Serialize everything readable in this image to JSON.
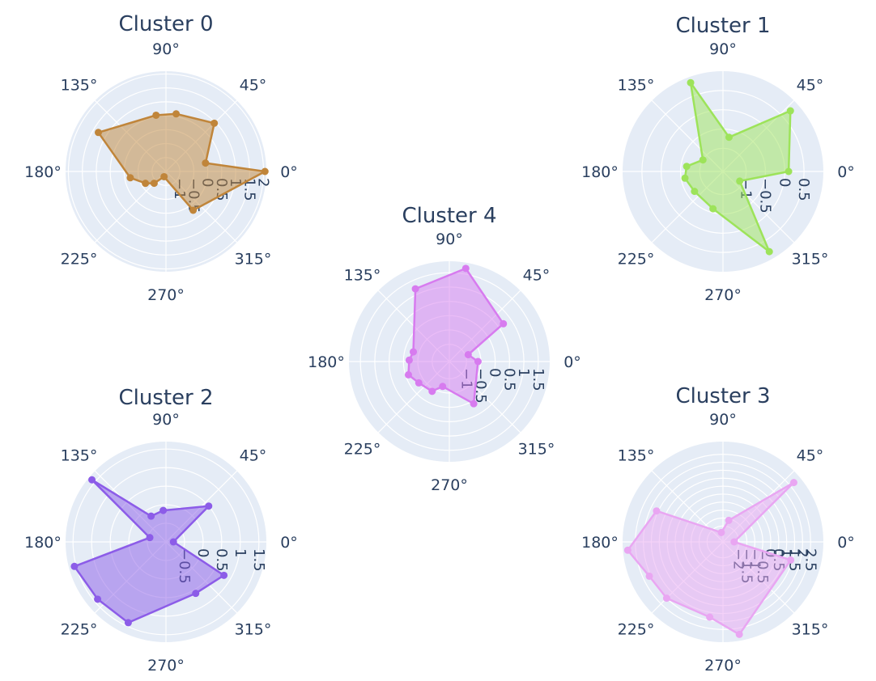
{
  "chart_data": [
    {
      "type": "radar",
      "title": "Cluster 0",
      "color": "#c0853a",
      "radial_range": [
        -1.5,
        2.1
      ],
      "radial_ticks": [
        "−1",
        "−0.5",
        "0",
        "0.5",
        "1",
        "1.5",
        "2"
      ],
      "angular_ticks": [
        "0°",
        "45°",
        "90°",
        "135°",
        "180°",
        "225°",
        "270°",
        "315°"
      ],
      "points": [
        {
          "theta": 0,
          "r": 2.05
        },
        {
          "theta": 12,
          "r": -0.05
        },
        {
          "theta": 45,
          "r": 0.95
        },
        {
          "theta": 80,
          "r": 0.6
        },
        {
          "theta": 100,
          "r": 0.55
        },
        {
          "theta": 150,
          "r": 1.3
        },
        {
          "theta": 190,
          "r": -0.2
        },
        {
          "theta": 210,
          "r": -0.65
        },
        {
          "theta": 225,
          "r": -0.9
        },
        {
          "theta": 250,
          "r": -1.3
        },
        {
          "theta": 305,
          "r": 0.2
        }
      ]
    },
    {
      "type": "radar",
      "title": "Cluster 1",
      "color": "#9de35a",
      "radial_range": [
        -1.6,
        1.0
      ],
      "radial_ticks": [
        "−1",
        "−0.5",
        "0",
        "0.5"
      ],
      "angular_ticks": [
        "0°",
        "45°",
        "90°",
        "135°",
        "180°",
        "225°",
        "270°",
        "315°"
      ],
      "points": [
        {
          "theta": 0,
          "r": 0.1
        },
        {
          "theta": 42,
          "r": 0.75
        },
        {
          "theta": 80,
          "r": -0.7
        },
        {
          "theta": 110,
          "r": 0.85
        },
        {
          "theta": 150,
          "r": -1.0
        },
        {
          "theta": 172,
          "r": -0.65
        },
        {
          "theta": 190,
          "r": -0.6
        },
        {
          "theta": 215,
          "r": -0.7
        },
        {
          "theta": 255,
          "r": -0.6
        },
        {
          "theta": 300,
          "r": 0.8
        },
        {
          "theta": 330,
          "r": -1.1
        }
      ]
    },
    {
      "type": "radar",
      "title": "Cluster 4",
      "color": "#d77bef",
      "radial_range": [
        -1.6,
        1.9
      ],
      "radial_ticks": [
        "−1",
        "−0.5",
        "0",
        "0.5",
        "1",
        "1.5"
      ],
      "angular_ticks": [
        "0°",
        "45°",
        "90°",
        "135°",
        "180°",
        "225°",
        "270°",
        "315°"
      ],
      "points": [
        {
          "theta": 0,
          "r": -0.6
        },
        {
          "theta": 20,
          "r": -0.9
        },
        {
          "theta": 35,
          "r": 0.7
        },
        {
          "theta": 80,
          "r": 1.7
        },
        {
          "theta": 115,
          "r": 1.2
        },
        {
          "theta": 165,
          "r": -0.3
        },
        {
          "theta": 178,
          "r": -0.2
        },
        {
          "theta": 198,
          "r": -0.1
        },
        {
          "theta": 215,
          "r": -0.3
        },
        {
          "theta": 240,
          "r": -0.4
        },
        {
          "theta": 255,
          "r": -0.7
        },
        {
          "theta": 300,
          "r": 0.1
        }
      ]
    },
    {
      "type": "radar",
      "title": "Cluster 2",
      "color": "#8c5ce8",
      "radial_range": [
        -1.0,
        1.7
      ],
      "radial_ticks": [
        "−0.5",
        "0",
        "0.5",
        "1",
        "1.5"
      ],
      "angular_ticks": [
        "0°",
        "45°",
        "90°",
        "135°",
        "180°",
        "225°",
        "270°",
        "315°"
      ],
      "points": [
        {
          "theta": 0,
          "r": -0.8
        },
        {
          "theta": 40,
          "r": 0.5
        },
        {
          "theta": 95,
          "r": -0.15
        },
        {
          "theta": 120,
          "r": -0.2
        },
        {
          "theta": 140,
          "r": 1.6
        },
        {
          "theta": 165,
          "r": -0.55
        },
        {
          "theta": 195,
          "r": 1.55
        },
        {
          "theta": 220,
          "r": 1.4
        },
        {
          "theta": 245,
          "r": 1.4
        },
        {
          "theta": 300,
          "r": 0.6
        },
        {
          "theta": 330,
          "r": 0.8
        }
      ]
    },
    {
      "type": "radar",
      "title": "Cluster 3",
      "color": "#e9a6f2",
      "radial_range": [
        -3.0,
        3.3
      ],
      "radial_ticks": [
        "−2",
        "−1.5",
        "−1",
        "−0.5",
        "0",
        "0.5",
        "1",
        "1.5",
        "2",
        "2.5"
      ],
      "angular_ticks": [
        "0°",
        "45°",
        "90°",
        "135°",
        "180°",
        "225°",
        "270°",
        "315°"
      ],
      "points": [
        {
          "theta": 0,
          "r": -2.3
        },
        {
          "theta": 40,
          "r": 2.8
        },
        {
          "theta": 75,
          "r": -1.6
        },
        {
          "theta": 100,
          "r": -2.4
        },
        {
          "theta": 155,
          "r": 1.6
        },
        {
          "theta": 185,
          "r": 3.0
        },
        {
          "theta": 205,
          "r": 2.1
        },
        {
          "theta": 225,
          "r": 2.0
        },
        {
          "theta": 260,
          "r": 1.8
        },
        {
          "theta": 280,
          "r": 2.9
        },
        {
          "theta": 345,
          "r": 1.4
        }
      ]
    }
  ]
}
